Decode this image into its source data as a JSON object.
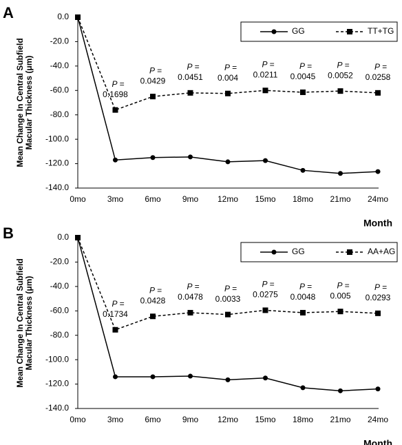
{
  "chart_data": [
    {
      "type": "line",
      "panel_label": "A",
      "ylabel": [
        "Mean Change In Central Subfield",
        "Macular Thickness (μm)"
      ],
      "xlabel": "Month",
      "categories": [
        "0mo",
        "3mo",
        "6mo",
        "9mo",
        "12mo",
        "15mo",
        "18mo",
        "21mo",
        "24mo"
      ],
      "series": [
        {
          "name": "GG",
          "color": "#000000",
          "linestyle": "solid",
          "marker": "circle",
          "values": [
            0,
            -117,
            -115,
            -114.5,
            -118.5,
            -117.5,
            -125.5,
            -128,
            -126.5
          ]
        },
        {
          "name": "TT+TG",
          "color": "#000000",
          "linestyle": "dashed",
          "marker": "square",
          "values": [
            0,
            -76,
            -65,
            -62,
            -62.5,
            -60,
            -61.5,
            -60.5,
            -62
          ]
        }
      ],
      "p_label": "P =",
      "p_values": [
        null,
        0.1698,
        0.0429,
        0.0451,
        0.004,
        0.0211,
        0.0045,
        0.0052,
        0.0258
      ],
      "ylim": [
        -140,
        0
      ],
      "yticks": [
        {
          "value": 0,
          "label": "0.0"
        },
        {
          "value": -20,
          "label": "-20.0"
        },
        {
          "value": -40,
          "label": "-40.0"
        },
        {
          "value": -60,
          "label": "-60.0"
        },
        {
          "value": -80,
          "label": "-80.0"
        },
        {
          "value": -100,
          "label": "-100.0"
        },
        {
          "value": -120,
          "label": "-120.0"
        },
        {
          "value": -140,
          "label": "-140.0"
        }
      ],
      "legend": "upper right",
      "grid": false
    },
    {
      "type": "line",
      "panel_label": "B",
      "ylabel": [
        "Mean Change In Central Subfield",
        "Macular Thickness (μm)"
      ],
      "xlabel": "Month",
      "categories": [
        "0mo",
        "3mo",
        "6mo",
        "9mo",
        "12mo",
        "15mo",
        "18mo",
        "21mo",
        "24mo"
      ],
      "series": [
        {
          "name": "GG",
          "color": "#000000",
          "linestyle": "solid",
          "marker": "circle",
          "values": [
            0,
            -114,
            -114,
            -113.5,
            -116.5,
            -115,
            -123,
            -125.5,
            -124
          ]
        },
        {
          "name": "AA+AG",
          "color": "#000000",
          "linestyle": "dashed",
          "marker": "square",
          "values": [
            0,
            -75.5,
            -64.5,
            -61.5,
            -63,
            -59.5,
            -61.5,
            -60.5,
            -62
          ]
        }
      ],
      "p_label": "P =",
      "p_values": [
        null,
        0.1734,
        0.0428,
        0.0478,
        0.0033,
        0.0275,
        0.0048,
        0.005,
        0.0293
      ],
      "ylim": [
        -140,
        0
      ],
      "yticks": [
        {
          "value": 0,
          "label": "0.0"
        },
        {
          "value": -20,
          "label": "-20.0"
        },
        {
          "value": -40,
          "label": "-40.0"
        },
        {
          "value": -60,
          "label": "-60.0"
        },
        {
          "value": -80,
          "label": "-80.0"
        },
        {
          "value": -100,
          "label": "-100.0"
        },
        {
          "value": -120,
          "label": "-120.0"
        },
        {
          "value": -140,
          "label": "-140.0"
        }
      ],
      "legend": "upper right",
      "grid": false
    }
  ]
}
